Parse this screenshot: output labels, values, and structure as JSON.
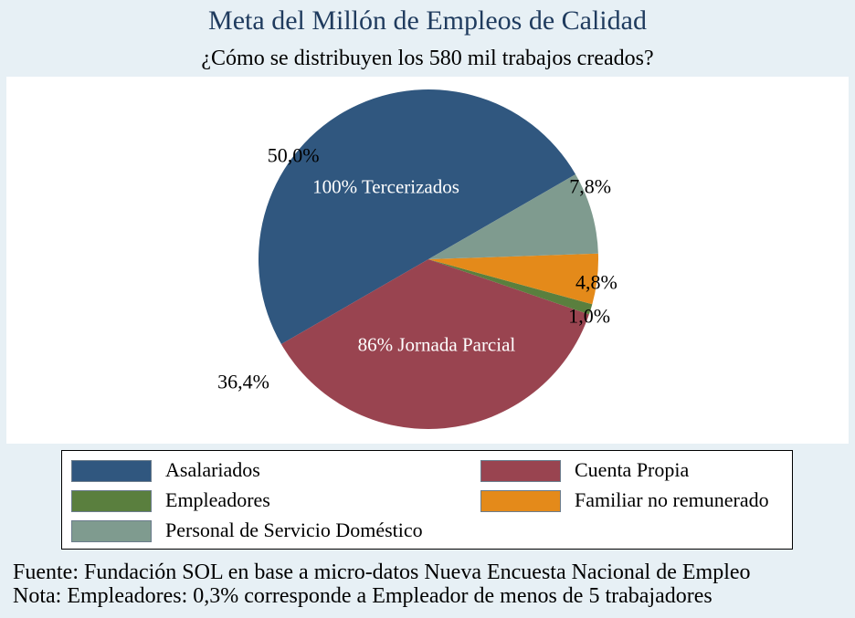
{
  "chart_data": {
    "type": "pie",
    "title": "Meta del Millón de Empleos de Calidad",
    "subtitle": "¿Cómo se distribuyen los 580 mil trabajos creados?",
    "slices": [
      {
        "label": "Asalariados",
        "value": 50.0,
        "display": "50,0%",
        "color": "#30577f"
      },
      {
        "label": "Cuenta Propia",
        "value": 36.4,
        "display": "36,4%",
        "color": "#994450"
      },
      {
        "label": "Empleadores",
        "value": 1.0,
        "display": "1,0%",
        "color": "#5a7f3e"
      },
      {
        "label": "Familiar no remunerado",
        "value": 4.8,
        "display": "4,8%",
        "color": "#e48a1a"
      },
      {
        "label": "Personal de Servicio Doméstico",
        "value": 7.8,
        "display": "7,8%",
        "color": "#7f9b8f"
      }
    ],
    "inner_labels": [
      {
        "slice": "Asalariados",
        "text": "100% Tercerizados"
      },
      {
        "slice": "Cuenta Propia",
        "text": "86% Jornada Parcial"
      }
    ],
    "legend": {
      "placement": "bottom",
      "entries": [
        "Asalariados",
        "Cuenta Propia",
        "Empleadores",
        "Familiar no remunerado",
        "Personal de Servicio Doméstico"
      ]
    }
  },
  "footer": {
    "source": "Fuente: Fundación SOL en base a micro-datos Nueva Encuesta Nacional de Empleo",
    "note": "Nota: Empleadores: 0,3% corresponde a Empleador de menos de 5 trabajadores"
  }
}
